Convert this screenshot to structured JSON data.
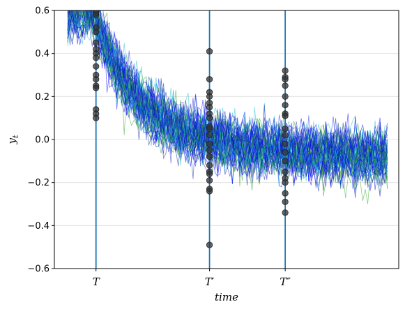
{
  "chart_data": {
    "type": "line",
    "title": "",
    "xlabel": "time",
    "ylabel": "y",
    "ylabel_subscript": "t",
    "ylim": [
      -0.6,
      0.6
    ],
    "yticks": [
      -0.6,
      -0.4,
      -0.2,
      0.0,
      0.2,
      0.4,
      0.6
    ],
    "ytick_labels": [
      "−0.6",
      "−0.4",
      "−0.2",
      "0.0",
      "0.2",
      "0.4",
      "0.6"
    ],
    "grid": "horizontal",
    "xlim": [
      -22,
      160
    ],
    "time_markers": [
      {
        "label": "T",
        "x": 0
      },
      {
        "label": "T′",
        "x": 60
      },
      {
        "label": "T″",
        "x": 100
      }
    ],
    "series_colors": [
      "#0000ff",
      "#1a2fd6",
      "#2ca02c",
      "#17becf",
      "#0a1fa8"
    ],
    "marker_color": "#333333",
    "marker_points": [
      {
        "x": 0,
        "y": [
          0.59,
          0.58,
          0.52,
          0.5,
          0.45,
          0.42,
          0.4,
          0.38,
          0.34,
          0.3,
          0.28,
          0.25,
          0.24,
          0.14,
          0.12,
          0.1
        ]
      },
      {
        "x": 60,
        "y": [
          0.41,
          0.28,
          0.22,
          0.2,
          0.17,
          0.15,
          0.12,
          0.1,
          0.06,
          0.05,
          0.02,
          -0.02,
          -0.05,
          -0.08,
          -0.12,
          -0.15,
          -0.16,
          -0.19,
          -0.23,
          -0.24,
          -0.49
        ]
      },
      {
        "x": 100,
        "y": [
          0.32,
          0.29,
          0.28,
          0.25,
          0.2,
          0.16,
          0.12,
          0.11,
          0.05,
          0.02,
          -0.02,
          -0.06,
          -0.1,
          -0.15,
          -0.18,
          -0.2,
          -0.25,
          -0.29,
          -0.34
        ]
      }
    ]
  }
}
